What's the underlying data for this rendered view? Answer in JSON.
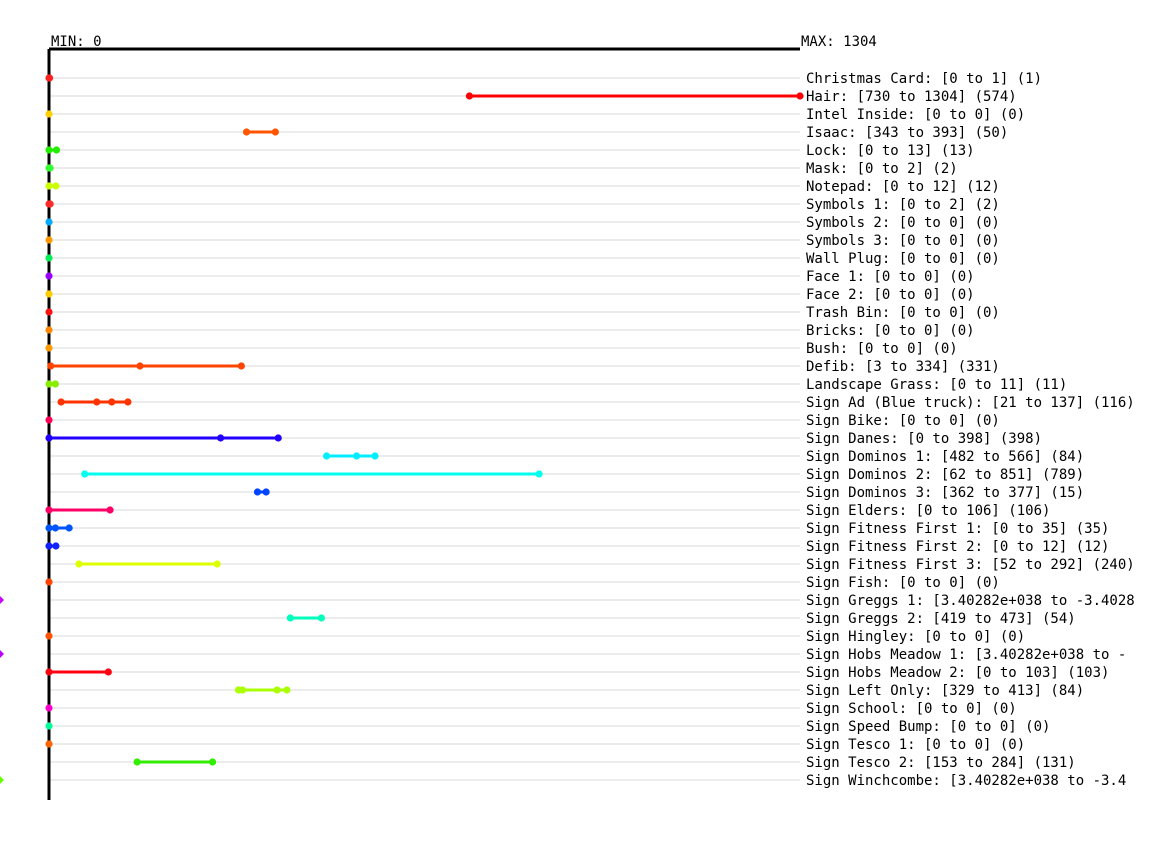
{
  "chart_data": {
    "type": "range",
    "min_label": "MIN: 0",
    "max_label": "MAX: 1304",
    "xlim": [
      0,
      1304
    ],
    "grid": true,
    "rows": [
      {
        "label": "Christmas Card: [0 to 1] (1)",
        "min": 0,
        "max": 1,
        "points": [
          0,
          1
        ],
        "color": "#ff2020"
      },
      {
        "label": "Hair: [730 to 1304] (574)",
        "min": 730,
        "max": 1304,
        "points": [
          730,
          1304
        ],
        "color": "#ff0000"
      },
      {
        "label": "Intel Inside: [0 to 0] (0)",
        "min": 0,
        "max": 0,
        "points": [
          0
        ],
        "color": "#ffd000"
      },
      {
        "label": "Isaac: [343 to 393] (50)",
        "min": 343,
        "max": 393,
        "points": [
          343,
          393
        ],
        "color": "#ff5500"
      },
      {
        "label": "Lock: [0 to 13] (13)",
        "min": 0,
        "max": 13,
        "points": [
          0,
          13
        ],
        "color": "#22ee00"
      },
      {
        "label": "Mask: [0 to 2] (2)",
        "min": 0,
        "max": 2,
        "points": [
          0,
          2
        ],
        "color": "#33ff33"
      },
      {
        "label": "Notepad: [0 to 12] (12)",
        "min": 0,
        "max": 12,
        "points": [
          0,
          12
        ],
        "color": "#ccff00"
      },
      {
        "label": "Symbols 1: [0 to 2] (2)",
        "min": 0,
        "max": 2,
        "points": [
          0,
          2
        ],
        "color": "#ff2a2a"
      },
      {
        "label": "Symbols 2: [0 to 0] (0)",
        "min": 0,
        "max": 0,
        "points": [
          0
        ],
        "color": "#00aaff"
      },
      {
        "label": "Symbols 3: [0 to 0] (0)",
        "min": 0,
        "max": 0,
        "points": [
          0
        ],
        "color": "#ff9900"
      },
      {
        "label": "Wall Plug: [0 to 0] (0)",
        "min": 0,
        "max": 0,
        "points": [
          0
        ],
        "color": "#00ee55"
      },
      {
        "label": "Face 1: [0 to 0] (0)",
        "min": 0,
        "max": 0,
        "points": [
          0
        ],
        "color": "#9900ff"
      },
      {
        "label": "Face 2: [0 to 0] (0)",
        "min": 0,
        "max": 0,
        "points": [
          0
        ],
        "color": "#ffcc00"
      },
      {
        "label": "Trash Bin: [0 to 0] (0)",
        "min": 0,
        "max": 0,
        "points": [
          0
        ],
        "color": "#ff1111"
      },
      {
        "label": "Bricks: [0 to 0] (0)",
        "min": 0,
        "max": 0,
        "points": [
          0
        ],
        "color": "#ff8800"
      },
      {
        "label": "Bush: [0 to 0] (0)",
        "min": 0,
        "max": 0,
        "points": [
          0
        ],
        "color": "#ff9900"
      },
      {
        "label": "Defib: [3 to 334] (331)",
        "min": 3,
        "max": 334,
        "points": [
          3,
          158,
          334
        ],
        "color": "#ff4400"
      },
      {
        "label": "Landscape Grass: [0 to 11] (11)",
        "min": 0,
        "max": 11,
        "points": [
          0,
          11
        ],
        "color": "#88ee00"
      },
      {
        "label": "Sign Ad (Blue truck): [21 to 137] (116)",
        "min": 21,
        "max": 137,
        "points": [
          21,
          83,
          109,
          137
        ],
        "color": "#ff3300"
      },
      {
        "label": "Sign Bike: [0 to 0] (0)",
        "min": 0,
        "max": 0,
        "points": [
          0
        ],
        "color": "#ff0055"
      },
      {
        "label": "Sign Danes: [0 to 398] (398)",
        "min": 0,
        "max": 398,
        "points": [
          0,
          298,
          398
        ],
        "color": "#2200ff"
      },
      {
        "label": "Sign Dominos 1: [482 to 566] (84)",
        "min": 482,
        "max": 566,
        "points": [
          482,
          534,
          566
        ],
        "color": "#00eeff"
      },
      {
        "label": "Sign Dominos 2: [62 to 851] (789)",
        "min": 62,
        "max": 851,
        "points": [
          62,
          851
        ],
        "color": "#00ffee"
      },
      {
        "label": "Sign Dominos 3: [362 to 377] (15)",
        "min": 362,
        "max": 377,
        "points": [
          362,
          377
        ],
        "color": "#0044ff"
      },
      {
        "label": "Sign Elders: [0 to 106] (106)",
        "min": 0,
        "max": 106,
        "points": [
          0,
          106
        ],
        "color": "#ff0066"
      },
      {
        "label": "Sign Fitness First 1: [0 to 35] (35)",
        "min": 0,
        "max": 35,
        "points": [
          0,
          11,
          35
        ],
        "color": "#0055ff"
      },
      {
        "label": "Sign Fitness First 2: [0 to 12] (12)",
        "min": 0,
        "max": 12,
        "points": [
          0,
          12
        ],
        "color": "#1122ff"
      },
      {
        "label": "Sign Fitness First 3: [52 to 292] (240)",
        "min": 52,
        "max": 292,
        "points": [
          52,
          292
        ],
        "color": "#ddff00"
      },
      {
        "label": "Sign Fish: [0 to 0] (0)",
        "min": 0,
        "max": 0,
        "points": [
          0
        ],
        "color": "#ff4400"
      },
      {
        "label": "Sign Greggs 1: [3.40282e+038 to -3.4028",
        "min": null,
        "max": null,
        "points": [],
        "off_left": true,
        "color": "#cc00ff"
      },
      {
        "label": "Sign Greggs 2: [419 to 473] (54)",
        "min": 419,
        "max": 473,
        "points": [
          419,
          473
        ],
        "color": "#00ffbb"
      },
      {
        "label": "Sign Hingley: [0 to 0] (0)",
        "min": 0,
        "max": 0,
        "points": [
          0
        ],
        "color": "#ff5500"
      },
      {
        "label": "Sign Hobs Meadow 1: [3.40282e+038 to -",
        "min": null,
        "max": null,
        "points": [],
        "off_left": true,
        "color": "#bb00ff"
      },
      {
        "label": "Sign Hobs Meadow 2: [0 to 103] (103)",
        "min": 0,
        "max": 103,
        "points": [
          0,
          103
        ],
        "color": "#ff0011"
      },
      {
        "label": "Sign Left Only: [329 to 413] (84)",
        "min": 329,
        "max": 413,
        "points": [
          329,
          336,
          396,
          413
        ],
        "color": "#aaff00"
      },
      {
        "label": "Sign School: [0 to 0] (0)",
        "min": 0,
        "max": 0,
        "points": [
          0
        ],
        "color": "#ff00cc"
      },
      {
        "label": "Sign Speed Bump: [0 to 0] (0)",
        "min": 0,
        "max": 0,
        "points": [
          0
        ],
        "color": "#00ff99"
      },
      {
        "label": "Sign Tesco 1: [0 to 0] (0)",
        "min": 0,
        "max": 0,
        "points": [
          0
        ],
        "color": "#ff6600"
      },
      {
        "label": "Sign Tesco 2: [153 to 284] (131)",
        "min": 153,
        "max": 284,
        "points": [
          153,
          284
        ],
        "color": "#33ee00"
      },
      {
        "label": "Sign Winchcombe: [3.40282e+038 to -3.4",
        "min": null,
        "max": null,
        "points": [],
        "off_left": true,
        "color": "#66ff00"
      }
    ]
  }
}
